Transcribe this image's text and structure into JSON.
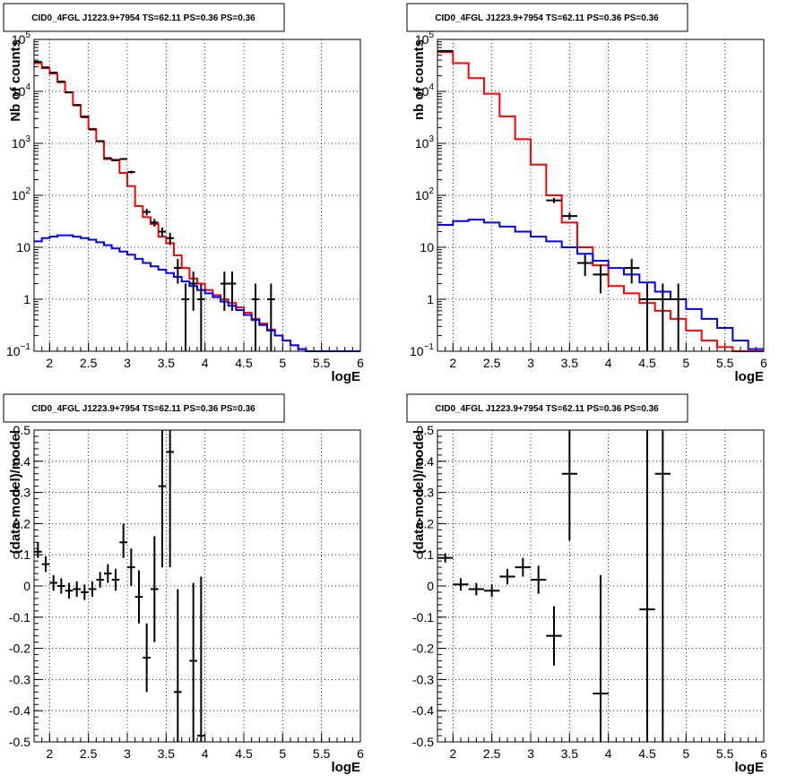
{
  "chart_data": [
    {
      "type": "histogram",
      "title": "CID0_4FGL J1223.9+7954 TS=62.11 PS=0.36 PS=0.36",
      "xlabel": "logE",
      "ylabel": "Nb of counts",
      "xlim": [
        1.8,
        6
      ],
      "ylim": [
        0.1,
        100000
      ],
      "yscale": "log",
      "grid": true,
      "x_ticks": [
        "2",
        "2.5",
        "3",
        "3.5",
        "4",
        "4.5",
        "5",
        "5.5",
        "6"
      ],
      "y_ticks": [
        "10^-1",
        "1",
        "10",
        "10^2",
        "10^3",
        "10^4",
        "10^5"
      ],
      "series": [
        {
          "kind": "step",
          "color": "#ff0000",
          "edges": [
            1.8,
            1.9,
            2.0,
            2.1,
            2.2,
            2.3,
            2.4,
            2.5,
            2.6,
            2.7,
            2.8,
            2.9,
            3.0,
            3.1,
            3.2,
            3.3,
            3.4,
            3.5,
            3.6,
            3.7,
            3.8,
            3.9,
            4.0,
            4.1,
            4.2,
            4.3,
            4.4,
            4.5,
            4.6,
            4.7,
            4.8,
            4.9,
            5.0,
            5.1,
            5.2,
            5.3,
            5.4,
            5.5,
            5.6,
            5.7,
            5.8,
            5.9,
            6.0
          ],
          "values": [
            35000,
            28000,
            22000,
            15000,
            9500,
            5500,
            3300,
            1900,
            1100,
            500,
            470,
            270,
            150,
            62,
            38,
            28,
            16,
            12,
            7,
            4,
            2.5,
            2.0,
            1.5,
            1.2,
            1.0,
            0.85,
            0.7,
            0.55,
            0.42,
            0.34,
            0.26,
            0.2,
            0.16,
            0.13,
            0.11,
            0.1,
            0.1,
            0.1,
            0.1,
            0.1,
            0.1,
            0.1
          ]
        },
        {
          "kind": "step",
          "color": "#0000ff",
          "edges": [
            1.8,
            1.9,
            2.0,
            2.1,
            2.2,
            2.3,
            2.4,
            2.5,
            2.6,
            2.7,
            2.8,
            2.9,
            3.0,
            3.1,
            3.2,
            3.3,
            3.4,
            3.5,
            3.6,
            3.7,
            3.8,
            3.9,
            4.0,
            4.1,
            4.2,
            4.3,
            4.4,
            4.5,
            4.6,
            4.7,
            4.8,
            4.9,
            5.0,
            5.1,
            5.2,
            5.3,
            5.4,
            5.5,
            5.6,
            5.7,
            5.8,
            5.9,
            6.0
          ],
          "values": [
            13,
            15,
            16,
            17,
            17,
            16,
            15,
            14,
            12.5,
            11,
            9.5,
            8.3,
            7.2,
            6.0,
            5.0,
            4.3,
            3.7,
            3.2,
            2.7,
            2.2,
            1.8,
            1.5,
            1.3,
            1.1,
            0.9,
            0.75,
            0.62,
            0.5,
            0.4,
            0.32,
            0.25,
            0.2,
            0.16,
            0.13,
            0.11,
            0.1,
            0.1,
            0.1,
            0.1,
            0.1,
            0.1,
            0.1
          ]
        }
      ],
      "points": [
        {
          "x": 1.85,
          "y": 37000,
          "xerr": 0.05,
          "ylo": 36500,
          "yhi": 37500
        },
        {
          "x": 1.95,
          "y": 29000,
          "xerr": 0.05,
          "ylo": 28600,
          "yhi": 29400
        },
        {
          "x": 2.05,
          "y": 23000,
          "xerr": 0.05,
          "ylo": 22700,
          "yhi": 23300
        },
        {
          "x": 2.15,
          "y": 15500,
          "xerr": 0.05,
          "ylo": 15200,
          "yhi": 15800
        },
        {
          "x": 2.25,
          "y": 9600,
          "xerr": 0.05,
          "ylo": 9400,
          "yhi": 9800
        },
        {
          "x": 2.35,
          "y": 5400,
          "xerr": 0.05,
          "ylo": 5300,
          "yhi": 5500
        },
        {
          "x": 2.45,
          "y": 3200,
          "xerr": 0.05,
          "ylo": 3140,
          "yhi": 3260
        },
        {
          "x": 2.55,
          "y": 1850,
          "xerr": 0.05,
          "ylo": 1800,
          "yhi": 1900
        },
        {
          "x": 2.65,
          "y": 1100,
          "xerr": 0.05,
          "ylo": 1070,
          "yhi": 1130
        },
        {
          "x": 2.75,
          "y": 520,
          "xerr": 0.05,
          "ylo": 500,
          "yhi": 540
        },
        {
          "x": 2.85,
          "y": 480,
          "xerr": 0.05,
          "ylo": 460,
          "yhi": 500
        },
        {
          "x": 2.95,
          "y": 500,
          "xerr": 0.05,
          "ylo": 478,
          "yhi": 522
        },
        {
          "x": 3.05,
          "y": 280,
          "xerr": 0.05,
          "ylo": 263,
          "yhi": 297
        },
        {
          "x": 3.25,
          "y": 48,
          "xerr": 0.05,
          "ylo": 41,
          "yhi": 55
        },
        {
          "x": 3.35,
          "y": 30,
          "xerr": 0.05,
          "ylo": 25,
          "yhi": 35
        },
        {
          "x": 3.45,
          "y": 20,
          "xerr": 0.05,
          "ylo": 16,
          "yhi": 24
        },
        {
          "x": 3.55,
          "y": 15,
          "xerr": 0.05,
          "ylo": 11,
          "yhi": 19
        },
        {
          "x": 3.65,
          "y": 4,
          "xerr": 0.05,
          "ylo": 2,
          "yhi": 6
        },
        {
          "x": 3.75,
          "y": 1,
          "xerr": 0.05,
          "ylo": 0.1,
          "yhi": 2
        },
        {
          "x": 3.85,
          "y": 2,
          "xerr": 0.05,
          "ylo": 0.6,
          "yhi": 3.4
        },
        {
          "x": 3.95,
          "y": 1,
          "xerr": 0.05,
          "ylo": 0.1,
          "yhi": 2
        },
        {
          "x": 4.25,
          "y": 2,
          "xerr": 0.05,
          "ylo": 0.6,
          "yhi": 3.4
        },
        {
          "x": 4.35,
          "y": 2,
          "xerr": 0.05,
          "ylo": 0.6,
          "yhi": 3.4
        },
        {
          "x": 4.65,
          "y": 1,
          "xerr": 0.05,
          "ylo": 0.1,
          "yhi": 2
        },
        {
          "x": 4.85,
          "y": 1,
          "xerr": 0.05,
          "ylo": 0.1,
          "yhi": 2
        }
      ]
    },
    {
      "type": "histogram",
      "title": "CID0_4FGL J1223.9+7954 TS=62.11 PS=0.36 PS=0.36",
      "xlabel": "logE",
      "ylabel": "nb of counts",
      "xlim": [
        1.8,
        6
      ],
      "ylim": [
        0.1,
        100000
      ],
      "yscale": "log",
      "grid": true,
      "x_ticks": [
        "2",
        "2.5",
        "3",
        "3.5",
        "4",
        "4.5",
        "5",
        "5.5",
        "6"
      ],
      "y_ticks": [
        "10^-1",
        "1",
        "10",
        "10^2",
        "10^3",
        "10^4",
        "10^5"
      ],
      "series": [
        {
          "kind": "step",
          "color": "#ff0000",
          "edges": [
            1.8,
            2.0,
            2.2,
            2.4,
            2.6,
            2.8,
            3.0,
            3.2,
            3.4,
            3.6,
            3.8,
            4.0,
            4.2,
            4.4,
            4.6,
            4.8,
            5.0,
            5.2,
            5.4,
            5.6,
            5.8,
            6.0
          ],
          "values": [
            57000,
            35000,
            18000,
            9000,
            3300,
            1200,
            390,
            100,
            30,
            10,
            4.5,
            1.8,
            1.3,
            0.85,
            0.6,
            0.42,
            0.25,
            0.16,
            0.12,
            0.1,
            0.1
          ]
        },
        {
          "kind": "step",
          "color": "#0000ff",
          "edges": [
            1.8,
            2.0,
            2.2,
            2.4,
            2.6,
            2.8,
            3.0,
            3.2,
            3.4,
            3.6,
            3.8,
            4.0,
            4.2,
            4.4,
            4.6,
            4.8,
            5.0,
            5.2,
            5.4,
            5.6,
            5.8,
            6.0
          ],
          "values": [
            27,
            32,
            34,
            30,
            25,
            20,
            16,
            13,
            10,
            7.5,
            5.5,
            4.0,
            3.0,
            2.1,
            1.4,
            1.0,
            0.65,
            0.42,
            0.28,
            0.16,
            0.11
          ]
        }
      ],
      "points": [
        {
          "x": 1.9,
          "y": 60000,
          "xerr": 0.1,
          "ylo": 59400,
          "yhi": 60600
        },
        {
          "x": 3.3,
          "y": 80,
          "xerr": 0.1,
          "ylo": 71,
          "yhi": 89
        },
        {
          "x": 3.5,
          "y": 40,
          "xerr": 0.1,
          "ylo": 34,
          "yhi": 46
        },
        {
          "x": 3.7,
          "y": 5,
          "xerr": 0.1,
          "ylo": 2.8,
          "yhi": 7.2
        },
        {
          "x": 3.9,
          "y": 3,
          "xerr": 0.1,
          "ylo": 1.3,
          "yhi": 4.7
        },
        {
          "x": 4.3,
          "y": 4,
          "xerr": 0.1,
          "ylo": 2,
          "yhi": 6
        },
        {
          "x": 4.5,
          "y": 1,
          "xerr": 0.1,
          "ylo": 0.1,
          "yhi": 2
        },
        {
          "x": 4.7,
          "y": 1,
          "xerr": 0.1,
          "ylo": 0.1,
          "yhi": 2
        },
        {
          "x": 4.9,
          "y": 1,
          "xerr": 0.1,
          "ylo": 0.1,
          "yhi": 2
        }
      ]
    },
    {
      "type": "errorbar",
      "title": "CID0_4FGL J1223.9+7954 TS=62.11 PS=0.36 PS=0.36",
      "xlabel": "logE",
      "ylabel": "(data-model)/model",
      "xlim": [
        1.8,
        6
      ],
      "ylim": [
        -0.5,
        0.5
      ],
      "yscale": "linear",
      "grid": true,
      "x_ticks": [
        "2",
        "2.5",
        "3",
        "3.5",
        "4",
        "4.5",
        "5",
        "5.5",
        "6"
      ],
      "y_ticks": [
        "-0.5",
        "-0.4",
        "-0.3",
        "-0.2",
        "-0.1",
        "0",
        "0.1",
        "0.2",
        "0.3",
        "0.4",
        "0.5"
      ],
      "series": [],
      "points": [
        {
          "x": 1.85,
          "y": 0.11,
          "xerr": 0.05,
          "ylo": 0.09,
          "yhi": 0.14
        },
        {
          "x": 1.95,
          "y": 0.07,
          "xerr": 0.05,
          "ylo": 0.045,
          "yhi": 0.095
        },
        {
          "x": 2.05,
          "y": 0.01,
          "xerr": 0.05,
          "ylo": -0.015,
          "yhi": 0.035
        },
        {
          "x": 2.15,
          "y": 0.0,
          "xerr": 0.05,
          "ylo": -0.025,
          "yhi": 0.025
        },
        {
          "x": 2.25,
          "y": -0.015,
          "xerr": 0.05,
          "ylo": -0.04,
          "yhi": 0.01
        },
        {
          "x": 2.35,
          "y": -0.01,
          "xerr": 0.05,
          "ylo": -0.035,
          "yhi": 0.015
        },
        {
          "x": 2.45,
          "y": -0.02,
          "xerr": 0.05,
          "ylo": -0.045,
          "yhi": 0.005
        },
        {
          "x": 2.55,
          "y": -0.01,
          "xerr": 0.05,
          "ylo": -0.035,
          "yhi": 0.015
        },
        {
          "x": 2.65,
          "y": 0.02,
          "xerr": 0.05,
          "ylo": -0.005,
          "yhi": 0.045
        },
        {
          "x": 2.75,
          "y": 0.04,
          "xerr": 0.05,
          "ylo": 0.01,
          "yhi": 0.07
        },
        {
          "x": 2.85,
          "y": 0.02,
          "xerr": 0.05,
          "ylo": -0.015,
          "yhi": 0.055
        },
        {
          "x": 2.95,
          "y": 0.14,
          "xerr": 0.05,
          "ylo": 0.09,
          "yhi": 0.2
        },
        {
          "x": 3.05,
          "y": 0.06,
          "xerr": 0.05,
          "ylo": 0.0,
          "yhi": 0.12
        },
        {
          "x": 3.15,
          "y": -0.035,
          "xerr": 0.05,
          "ylo": -0.12,
          "yhi": 0.05
        },
        {
          "x": 3.25,
          "y": -0.23,
          "xerr": 0.05,
          "ylo": -0.34,
          "yhi": -0.12
        },
        {
          "x": 3.35,
          "y": -0.01,
          "xerr": 0.05,
          "ylo": -0.18,
          "yhi": 0.16
        },
        {
          "x": 3.45,
          "y": 0.32,
          "xerr": 0.05,
          "ylo": 0.06,
          "yhi": 0.5
        },
        {
          "x": 3.55,
          "y": 0.43,
          "xerr": 0.05,
          "ylo": 0.06,
          "yhi": 0.5
        },
        {
          "x": 3.65,
          "y": -0.34,
          "xerr": 0.05,
          "ylo": -0.5,
          "yhi": -0.01
        },
        {
          "x": 3.85,
          "y": -0.24,
          "xerr": 0.05,
          "ylo": -0.5,
          "yhi": 0.01
        },
        {
          "x": 3.95,
          "y": -0.48,
          "xerr": 0.05,
          "ylo": -0.5,
          "yhi": 0.03
        }
      ]
    },
    {
      "type": "errorbar",
      "title": "CID0_4FGL J1223.9+7954 TS=62.11 PS=0.36 PS=0.36",
      "xlabel": "logE",
      "ylabel": "(data-model)/model",
      "xlim": [
        1.8,
        6
      ],
      "ylim": [
        -0.5,
        0.5
      ],
      "yscale": "linear",
      "grid": true,
      "x_ticks": [
        "2",
        "2.5",
        "3",
        "3.5",
        "4",
        "4.5",
        "5",
        "5.5",
        "6"
      ],
      "y_ticks": [
        "-0.5",
        "-0.4",
        "-0.3",
        "-0.2",
        "-0.1",
        "0",
        "0.1",
        "0.2",
        "0.3",
        "0.4",
        "0.5"
      ],
      "series": [],
      "points": [
        {
          "x": 1.9,
          "y": 0.09,
          "xerr": 0.1,
          "ylo": 0.075,
          "yhi": 0.105
        },
        {
          "x": 2.1,
          "y": 0.005,
          "xerr": 0.1,
          "ylo": -0.015,
          "yhi": 0.025
        },
        {
          "x": 2.3,
          "y": -0.01,
          "xerr": 0.1,
          "ylo": -0.03,
          "yhi": 0.01
        },
        {
          "x": 2.5,
          "y": -0.015,
          "xerr": 0.1,
          "ylo": -0.035,
          "yhi": 0.005
        },
        {
          "x": 2.7,
          "y": 0.03,
          "xerr": 0.1,
          "ylo": 0.005,
          "yhi": 0.055
        },
        {
          "x": 2.9,
          "y": 0.06,
          "xerr": 0.1,
          "ylo": 0.03,
          "yhi": 0.09
        },
        {
          "x": 3.1,
          "y": 0.02,
          "xerr": 0.1,
          "ylo": -0.025,
          "yhi": 0.065
        },
        {
          "x": 3.3,
          "y": -0.16,
          "xerr": 0.1,
          "ylo": -0.255,
          "yhi": -0.065
        },
        {
          "x": 3.5,
          "y": 0.36,
          "xerr": 0.1,
          "ylo": 0.145,
          "yhi": 0.5
        },
        {
          "x": 3.9,
          "y": -0.345,
          "xerr": 0.1,
          "ylo": -0.5,
          "yhi": 0.035
        },
        {
          "x": 4.5,
          "y": -0.075,
          "xerr": 0.1,
          "ylo": -0.5,
          "yhi": 0.5
        },
        {
          "x": 4.7,
          "y": 0.36,
          "xerr": 0.1,
          "ylo": -0.5,
          "yhi": 0.5
        }
      ]
    }
  ]
}
